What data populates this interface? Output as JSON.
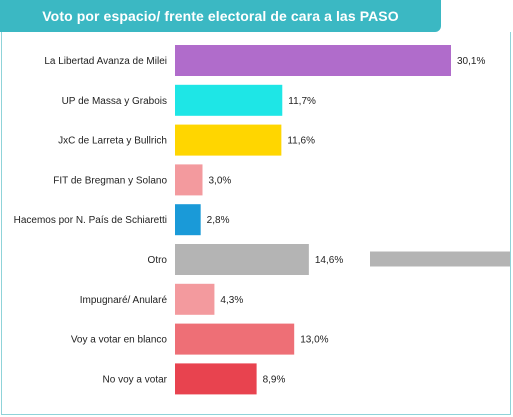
{
  "title": "Voto por espacio/ frente electoral de cara a las PASO",
  "chart_data": {
    "type": "bar",
    "orientation": "horizontal",
    "title": "Voto por espacio/ frente electoral de cara a las PASO",
    "xlabel": "",
    "ylabel": "",
    "xlim": [
      0,
      30.1
    ],
    "grid": false,
    "legend": "none",
    "value_suffix": "%",
    "categories": [
      "La Libertad Avanza de Milei",
      "UP de Massa y Grabois",
      "JxC de Larreta y Bullrich",
      "FIT de Bregman y Solano",
      "Hacemos por N. País de Schiaretti",
      "Otro",
      "Impugnaré/ Anularé",
      "Voy a votar en blanco",
      "No voy a votar"
    ],
    "values": [
      30.1,
      11.7,
      11.6,
      3.0,
      2.8,
      14.6,
      4.3,
      13.0,
      8.9
    ],
    "value_labels": [
      "30,1%",
      "11,7%",
      "11,6%",
      "3,0%",
      "2,8%",
      "14,6%",
      "4,3%",
      "13,0%",
      "8,9%"
    ],
    "colors": [
      "#b06ccb",
      "#1ee6e6",
      "#ffd600",
      "#f39a9e",
      "#1a9ad8",
      "#b4b4b4",
      "#f39a9e",
      "#ee6f76",
      "#e8434f"
    ],
    "extra_line_color": "#b4b4b4"
  }
}
